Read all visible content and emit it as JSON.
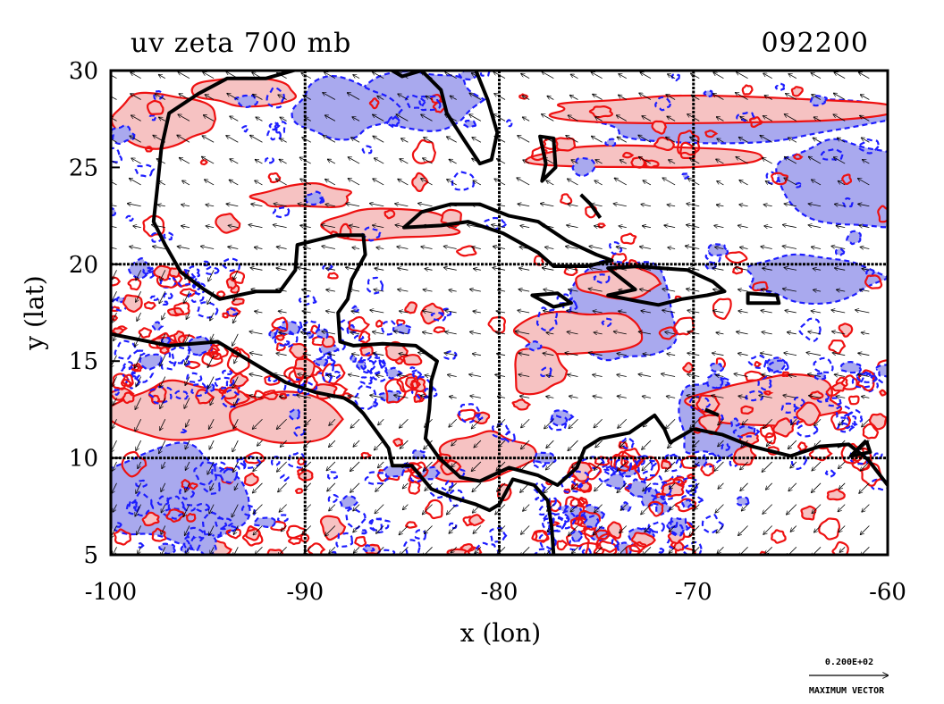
{
  "chart_data": {
    "type": "contour",
    "title_left": "uv zeta 700 mb",
    "title_right": "092200",
    "xlabel": "x (lon)",
    "ylabel": "y (lat)",
    "x_ticks": [
      "-100",
      "-90",
      "-80",
      "-70",
      "-60"
    ],
    "x_tick_values": [
      -100,
      -90,
      -80,
      -70,
      -60
    ],
    "y_ticks": [
      "5",
      "10",
      "15",
      "20",
      "25",
      "30"
    ],
    "y_tick_values": [
      5,
      10,
      15,
      20,
      25,
      30
    ],
    "xlim": [
      -100,
      -60
    ],
    "ylim": [
      5,
      30
    ],
    "grid": true,
    "grid_x": [
      -90,
      -80,
      -70
    ],
    "grid_y": [
      10,
      20
    ],
    "series": [
      {
        "style": "solid-red"
      },
      {
        "style": "dashed-blue"
      }
    ],
    "colors": {
      "positive_line": "#ee1111",
      "positive_fill": "#f6c2c2",
      "negative_line": "#1d1dff",
      "negative_fill": "#a9a9ee",
      "coast": "#000000"
    },
    "vector_legend": {
      "value": "0.200E+02",
      "label": "MAXIMUM VECTOR"
    }
  }
}
